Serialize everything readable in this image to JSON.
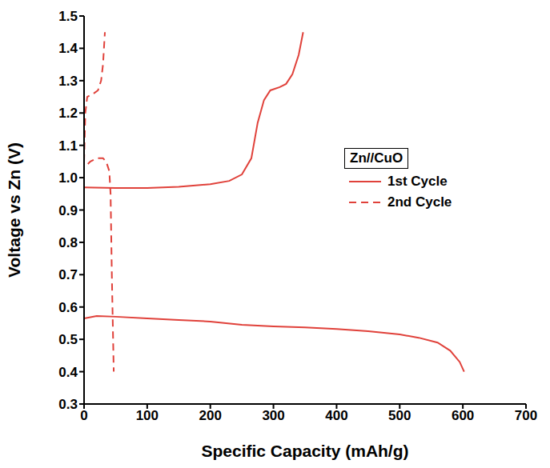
{
  "chart_data": {
    "type": "line",
    "x_label": "Specific Capacity (mAh/g)",
    "y_label": "Voltage vs Zn (V)",
    "legend_title": "Zn//CuO",
    "legend": "right",
    "xlim": [
      0,
      700
    ],
    "xticks": [
      0,
      100,
      200,
      300,
      400,
      500,
      600,
      700
    ],
    "ylim": [
      0.3,
      1.5
    ],
    "yticks": [
      0.3,
      0.4,
      0.5,
      0.6,
      0.7,
      0.8,
      0.9,
      {
        "value": 1,
        "label": "1.0"
      },
      1.1,
      1.2,
      1.3,
      1.4,
      1.5
    ],
    "series": [
      {
        "name": "1st Cycle",
        "color": "#e0413a",
        "line_style": "solid",
        "x": [
          0,
          20,
          50,
          100,
          150,
          200,
          250,
          300,
          350,
          400,
          450,
          500,
          530,
          560,
          580,
          595,
          602,
          null,
          0,
          50,
          100,
          150,
          200,
          230,
          250,
          265,
          275,
          285,
          295,
          310,
          320,
          330,
          340,
          347
        ],
        "values": [
          0.565,
          0.572,
          0.57,
          0.565,
          0.56,
          0.555,
          0.545,
          0.54,
          0.537,
          0.532,
          0.525,
          0.515,
          0.505,
          0.49,
          0.465,
          0.43,
          0.4,
          null,
          0.97,
          0.968,
          0.968,
          0.972,
          0.98,
          0.99,
          1.01,
          1.06,
          1.17,
          1.24,
          1.27,
          1.28,
          1.29,
          1.32,
          1.38,
          1.45
        ]
      },
      {
        "name": "2nd Cycle",
        "color": "#e0413a",
        "line_style": "dashed",
        "x": [
          0,
          0,
          5,
          10,
          20,
          30,
          35,
          40,
          42,
          44,
          46,
          47,
          null,
          0,
          2,
          5,
          15,
          22,
          27,
          30,
          33
        ],
        "values": [
          1.25,
          1.04,
          1.04,
          1.05,
          1.06,
          1.06,
          1.05,
          1.02,
          0.95,
          0.7,
          0.5,
          0.4,
          null,
          1.05,
          1.2,
          1.25,
          1.26,
          1.27,
          1.3,
          1.35,
          1.45
        ]
      }
    ]
  }
}
